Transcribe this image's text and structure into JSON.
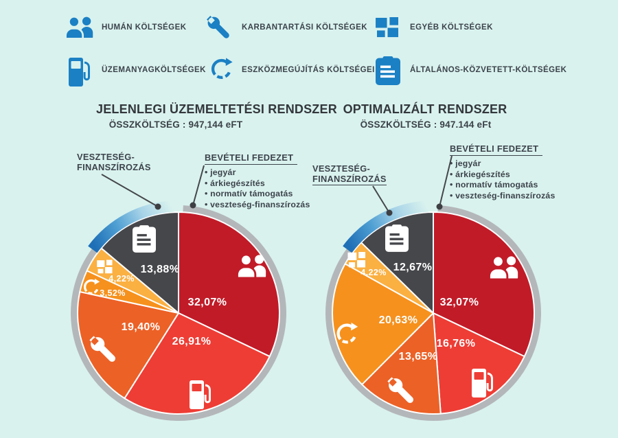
{
  "styles": {
    "background": "#d9f2ee",
    "rim_color": "#b4b7b9",
    "loss_arc_gradient": [
      "#1e6fb6",
      "#4f9fd3",
      "#a8d4e8",
      "#d9f2ee"
    ],
    "legend_icon_color": "#1b80c4",
    "text_color": "#3c434b",
    "pointer_color": "#45474a"
  },
  "legend": {
    "items": [
      {
        "icon": "people",
        "label": "HUMÁN KÖLTSÉGEK"
      },
      {
        "icon": "wrench",
        "label": "KARBANTARTÁSI KÖLTSÉGEK"
      },
      {
        "icon": "grid",
        "label": "EGYÉB KÖLTSÉGEK"
      },
      {
        "icon": "fuel",
        "label": "ÜZEMANYAGKÖLTSÉGEK"
      },
      {
        "icon": "renew",
        "label": "ESZKÖZMEGÚJÍTÁS KÖLTSÉGEI"
      },
      {
        "icon": "clipboard",
        "label": "ÁLTALÁNOS-KÖZVETETT-KÖLTSÉGEK"
      }
    ]
  },
  "chart_data": [
    {
      "type": "pie",
      "title": "JELENLEGI ÜZEMELTETÉSI  RENDSZER",
      "subtitle": "ÖSSZKÖLTSÉG : 947,144 eFT",
      "start_angle_deg": 0,
      "direction": "clockwise",
      "slices": [
        {
          "label": "HUMÁN KÖLTSÉGEK",
          "icon": "people",
          "value": 32.07,
          "display": "32,07%",
          "color": "#c11b28"
        },
        {
          "label": "ÜZEMANYAGKÖLTSÉGEK",
          "icon": "fuel",
          "value": 26.91,
          "display": "26,91%",
          "color": "#ee3d35"
        },
        {
          "label": "KARBANTARTÁSI KÖLTSÉGEK",
          "icon": "wrench",
          "value": 19.4,
          "display": "19,40%",
          "color": "#ec6126"
        },
        {
          "label": "ESZKÖZMEGÚJÍTÁS KÖLTSÉGEI",
          "icon": "renew",
          "value": 3.52,
          "display": "3,52%",
          "color": "#f6911d"
        },
        {
          "label": "EGYÉB KÖLTSÉGEK",
          "icon": "grid",
          "value": 4.22,
          "display": "4,22%",
          "color": "#fbb042"
        },
        {
          "label": "ÁLTALÁNOS-KÖZVETETT-KÖLTSÉGEK",
          "icon": "clipboard",
          "value": 13.88,
          "display": "13,88%",
          "color": "#46474b"
        }
      ],
      "annotations": {
        "loss_lines": [
          "VESZTESÉG-",
          "FINANSZÍROZÁS"
        ],
        "coverage_title": "BEVÉTELI FEDEZET",
        "coverage_items": [
          "jegyár",
          "árkiegészítés",
          "normatív támogatás",
          "veszteség-finanszírozás"
        ]
      }
    },
    {
      "type": "pie",
      "title": "OPTIMALIZÁLT RENDSZER",
      "subtitle": "ÖSSZKÖLTSÉG : 947.144 eFt",
      "start_angle_deg": 0,
      "direction": "clockwise",
      "slices": [
        {
          "label": "HUMÁN KÖLTSÉGEK",
          "icon": "people",
          "value": 32.07,
          "display": "32,07%",
          "color": "#c11b28"
        },
        {
          "label": "ÜZEMANYAGKÖLTSÉGEK",
          "icon": "fuel",
          "value": 16.76,
          "display": "16,76%",
          "color": "#ee3d35"
        },
        {
          "label": "KARBANTARTÁSI KÖLTSÉGEK",
          "icon": "wrench",
          "value": 13.65,
          "display": "13,65%",
          "color": "#ec6126"
        },
        {
          "label": "ESZKÖZMEGÚJÍTÁS KÖLTSÉGEI",
          "icon": "renew",
          "value": 20.63,
          "display": "20,63%",
          "color": "#f6911d"
        },
        {
          "label": "EGYÉB KÖLTSÉGEK",
          "icon": "grid",
          "value": 4.22,
          "display": "4,22%",
          "color": "#fbb042"
        },
        {
          "label": "ÁLTALÁNOS-KÖZVETETT-KÖLTSÉGEK",
          "icon": "clipboard",
          "value": 12.67,
          "display": "12,67%",
          "color": "#46474b"
        }
      ],
      "annotations": {
        "loss_lines": [
          "VESZTESÉG-",
          "FINANSZÍROZÁS"
        ],
        "coverage_title": "BEVÉTELI FEDEZET",
        "coverage_items": [
          "jegyár",
          "árkiegészítés",
          "normatív támogatás",
          "veszteség-finanszírozás"
        ]
      }
    }
  ]
}
